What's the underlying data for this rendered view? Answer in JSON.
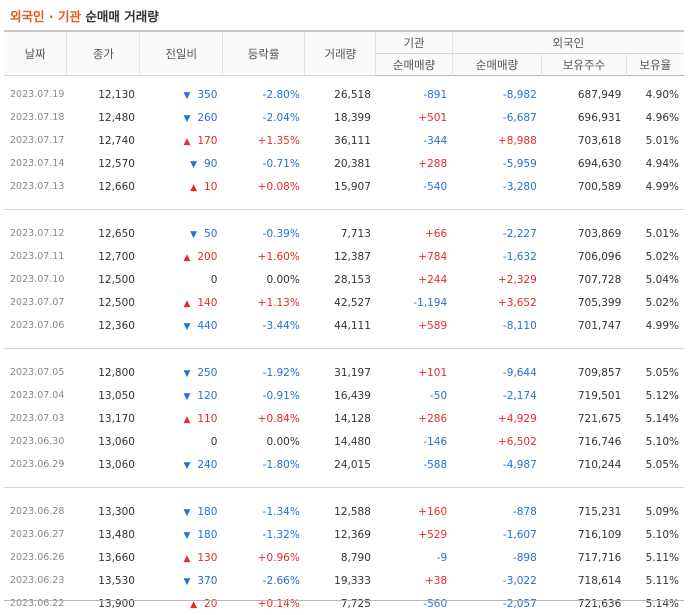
{
  "header": {
    "title_part1": "외국인",
    "title_sep": "·",
    "title_part2": "기관",
    "title_part3": "순매매 거래량"
  },
  "columns": {
    "date": "날짜",
    "close": "종가",
    "change": "전일비",
    "rate": "등락률",
    "volume": "거래량",
    "institution": "기관",
    "inst_net": "순매매량",
    "foreign": "외국인",
    "foreign_net": "순매매량",
    "holdings": "보유주수",
    "ratio": "보유율"
  },
  "groups": [
    [
      {
        "date": "2023.07.19",
        "close": "12,130",
        "dir": "down",
        "change": "350",
        "rate": "-2.80%",
        "volume": "26,518",
        "inst": "-891",
        "foreign": "-8,982",
        "holdings": "687,949",
        "ratio": "4.90%"
      },
      {
        "date": "2023.07.18",
        "close": "12,480",
        "dir": "down",
        "change": "260",
        "rate": "-2.04%",
        "volume": "18,399",
        "inst": "+501",
        "foreign": "-6,687",
        "holdings": "696,931",
        "ratio": "4.96%"
      },
      {
        "date": "2023.07.17",
        "close": "12,740",
        "dir": "up",
        "change": "170",
        "rate": "+1.35%",
        "volume": "36,111",
        "inst": "-344",
        "foreign": "+8,988",
        "holdings": "703,618",
        "ratio": "5.01%"
      },
      {
        "date": "2023.07.14",
        "close": "12,570",
        "dir": "down",
        "change": "90",
        "rate": "-0.71%",
        "volume": "20,381",
        "inst": "+288",
        "foreign": "-5,959",
        "holdings": "694,630",
        "ratio": "4.94%"
      },
      {
        "date": "2023.07.13",
        "close": "12,660",
        "dir": "up",
        "change": "10",
        "rate": "+0.08%",
        "volume": "15,907",
        "inst": "-540",
        "foreign": "-3,280",
        "holdings": "700,589",
        "ratio": "4.99%"
      }
    ],
    [
      {
        "date": "2023.07.12",
        "close": "12,650",
        "dir": "down",
        "change": "50",
        "rate": "-0.39%",
        "volume": "7,713",
        "inst": "+66",
        "foreign": "-2,227",
        "holdings": "703,869",
        "ratio": "5.01%"
      },
      {
        "date": "2023.07.11",
        "close": "12,700",
        "dir": "up",
        "change": "200",
        "rate": "+1.60%",
        "volume": "12,387",
        "inst": "+784",
        "foreign": "-1,632",
        "holdings": "706,096",
        "ratio": "5.02%"
      },
      {
        "date": "2023.07.10",
        "close": "12,500",
        "dir": "flat",
        "change": "0",
        "rate": "0.00%",
        "volume": "28,153",
        "inst": "+244",
        "foreign": "+2,329",
        "holdings": "707,728",
        "ratio": "5.04%"
      },
      {
        "date": "2023.07.07",
        "close": "12,500",
        "dir": "up",
        "change": "140",
        "rate": "+1.13%",
        "volume": "42,527",
        "inst": "-1,194",
        "foreign": "+3,652",
        "holdings": "705,399",
        "ratio": "5.02%"
      },
      {
        "date": "2023.07.06",
        "close": "12,360",
        "dir": "down",
        "change": "440",
        "rate": "-3.44%",
        "volume": "44,111",
        "inst": "+589",
        "foreign": "-8,110",
        "holdings": "701,747",
        "ratio": "4.99%"
      }
    ],
    [
      {
        "date": "2023.07.05",
        "close": "12,800",
        "dir": "down",
        "change": "250",
        "rate": "-1.92%",
        "volume": "31,197",
        "inst": "+101",
        "foreign": "-9,644",
        "holdings": "709,857",
        "ratio": "5.05%"
      },
      {
        "date": "2023.07.04",
        "close": "13,050",
        "dir": "down",
        "change": "120",
        "rate": "-0.91%",
        "volume": "16,439",
        "inst": "-50",
        "foreign": "-2,174",
        "holdings": "719,501",
        "ratio": "5.12%"
      },
      {
        "date": "2023.07.03",
        "close": "13,170",
        "dir": "up",
        "change": "110",
        "rate": "+0.84%",
        "volume": "14,128",
        "inst": "+286",
        "foreign": "+4,929",
        "holdings": "721,675",
        "ratio": "5.14%"
      },
      {
        "date": "2023.06.30",
        "close": "13,060",
        "dir": "flat",
        "change": "0",
        "rate": "0.00%",
        "volume": "14,480",
        "inst": "-146",
        "foreign": "+6,502",
        "holdings": "716,746",
        "ratio": "5.10%"
      },
      {
        "date": "2023.06.29",
        "close": "13,060",
        "dir": "down",
        "change": "240",
        "rate": "-1.80%",
        "volume": "24,015",
        "inst": "-588",
        "foreign": "-4,987",
        "holdings": "710,244",
        "ratio": "5.05%"
      }
    ],
    [
      {
        "date": "2023.06.28",
        "close": "13,300",
        "dir": "down",
        "change": "180",
        "rate": "-1.34%",
        "volume": "12,588",
        "inst": "+160",
        "foreign": "-878",
        "holdings": "715,231",
        "ratio": "5.09%"
      },
      {
        "date": "2023.06.27",
        "close": "13,480",
        "dir": "down",
        "change": "180",
        "rate": "-1.32%",
        "volume": "12,369",
        "inst": "+529",
        "foreign": "-1,607",
        "holdings": "716,109",
        "ratio": "5.10%"
      },
      {
        "date": "2023.06.26",
        "close": "13,660",
        "dir": "up",
        "change": "130",
        "rate": "+0.96%",
        "volume": "8,790",
        "inst": "-9",
        "foreign": "-898",
        "holdings": "717,716",
        "ratio": "5.11%"
      },
      {
        "date": "2023.06.23",
        "close": "13,530",
        "dir": "down",
        "change": "370",
        "rate": "-2.66%",
        "volume": "19,333",
        "inst": "+38",
        "foreign": "-3,022",
        "holdings": "718,614",
        "ratio": "5.11%"
      },
      {
        "date": "2023.06.22",
        "close": "13,900",
        "dir": "up",
        "change": "20",
        "rate": "+0.14%",
        "volume": "7,725",
        "inst": "-560",
        "foreign": "-2,057",
        "holdings": "721,636",
        "ratio": "5.14%"
      }
    ]
  ],
  "colors": {
    "up": "#e52b2b",
    "down": "#2a6fd1",
    "title_accent": "#e8581a"
  },
  "icons": {
    "up": "triangle-up-icon",
    "down": "triangle-down-icon"
  }
}
